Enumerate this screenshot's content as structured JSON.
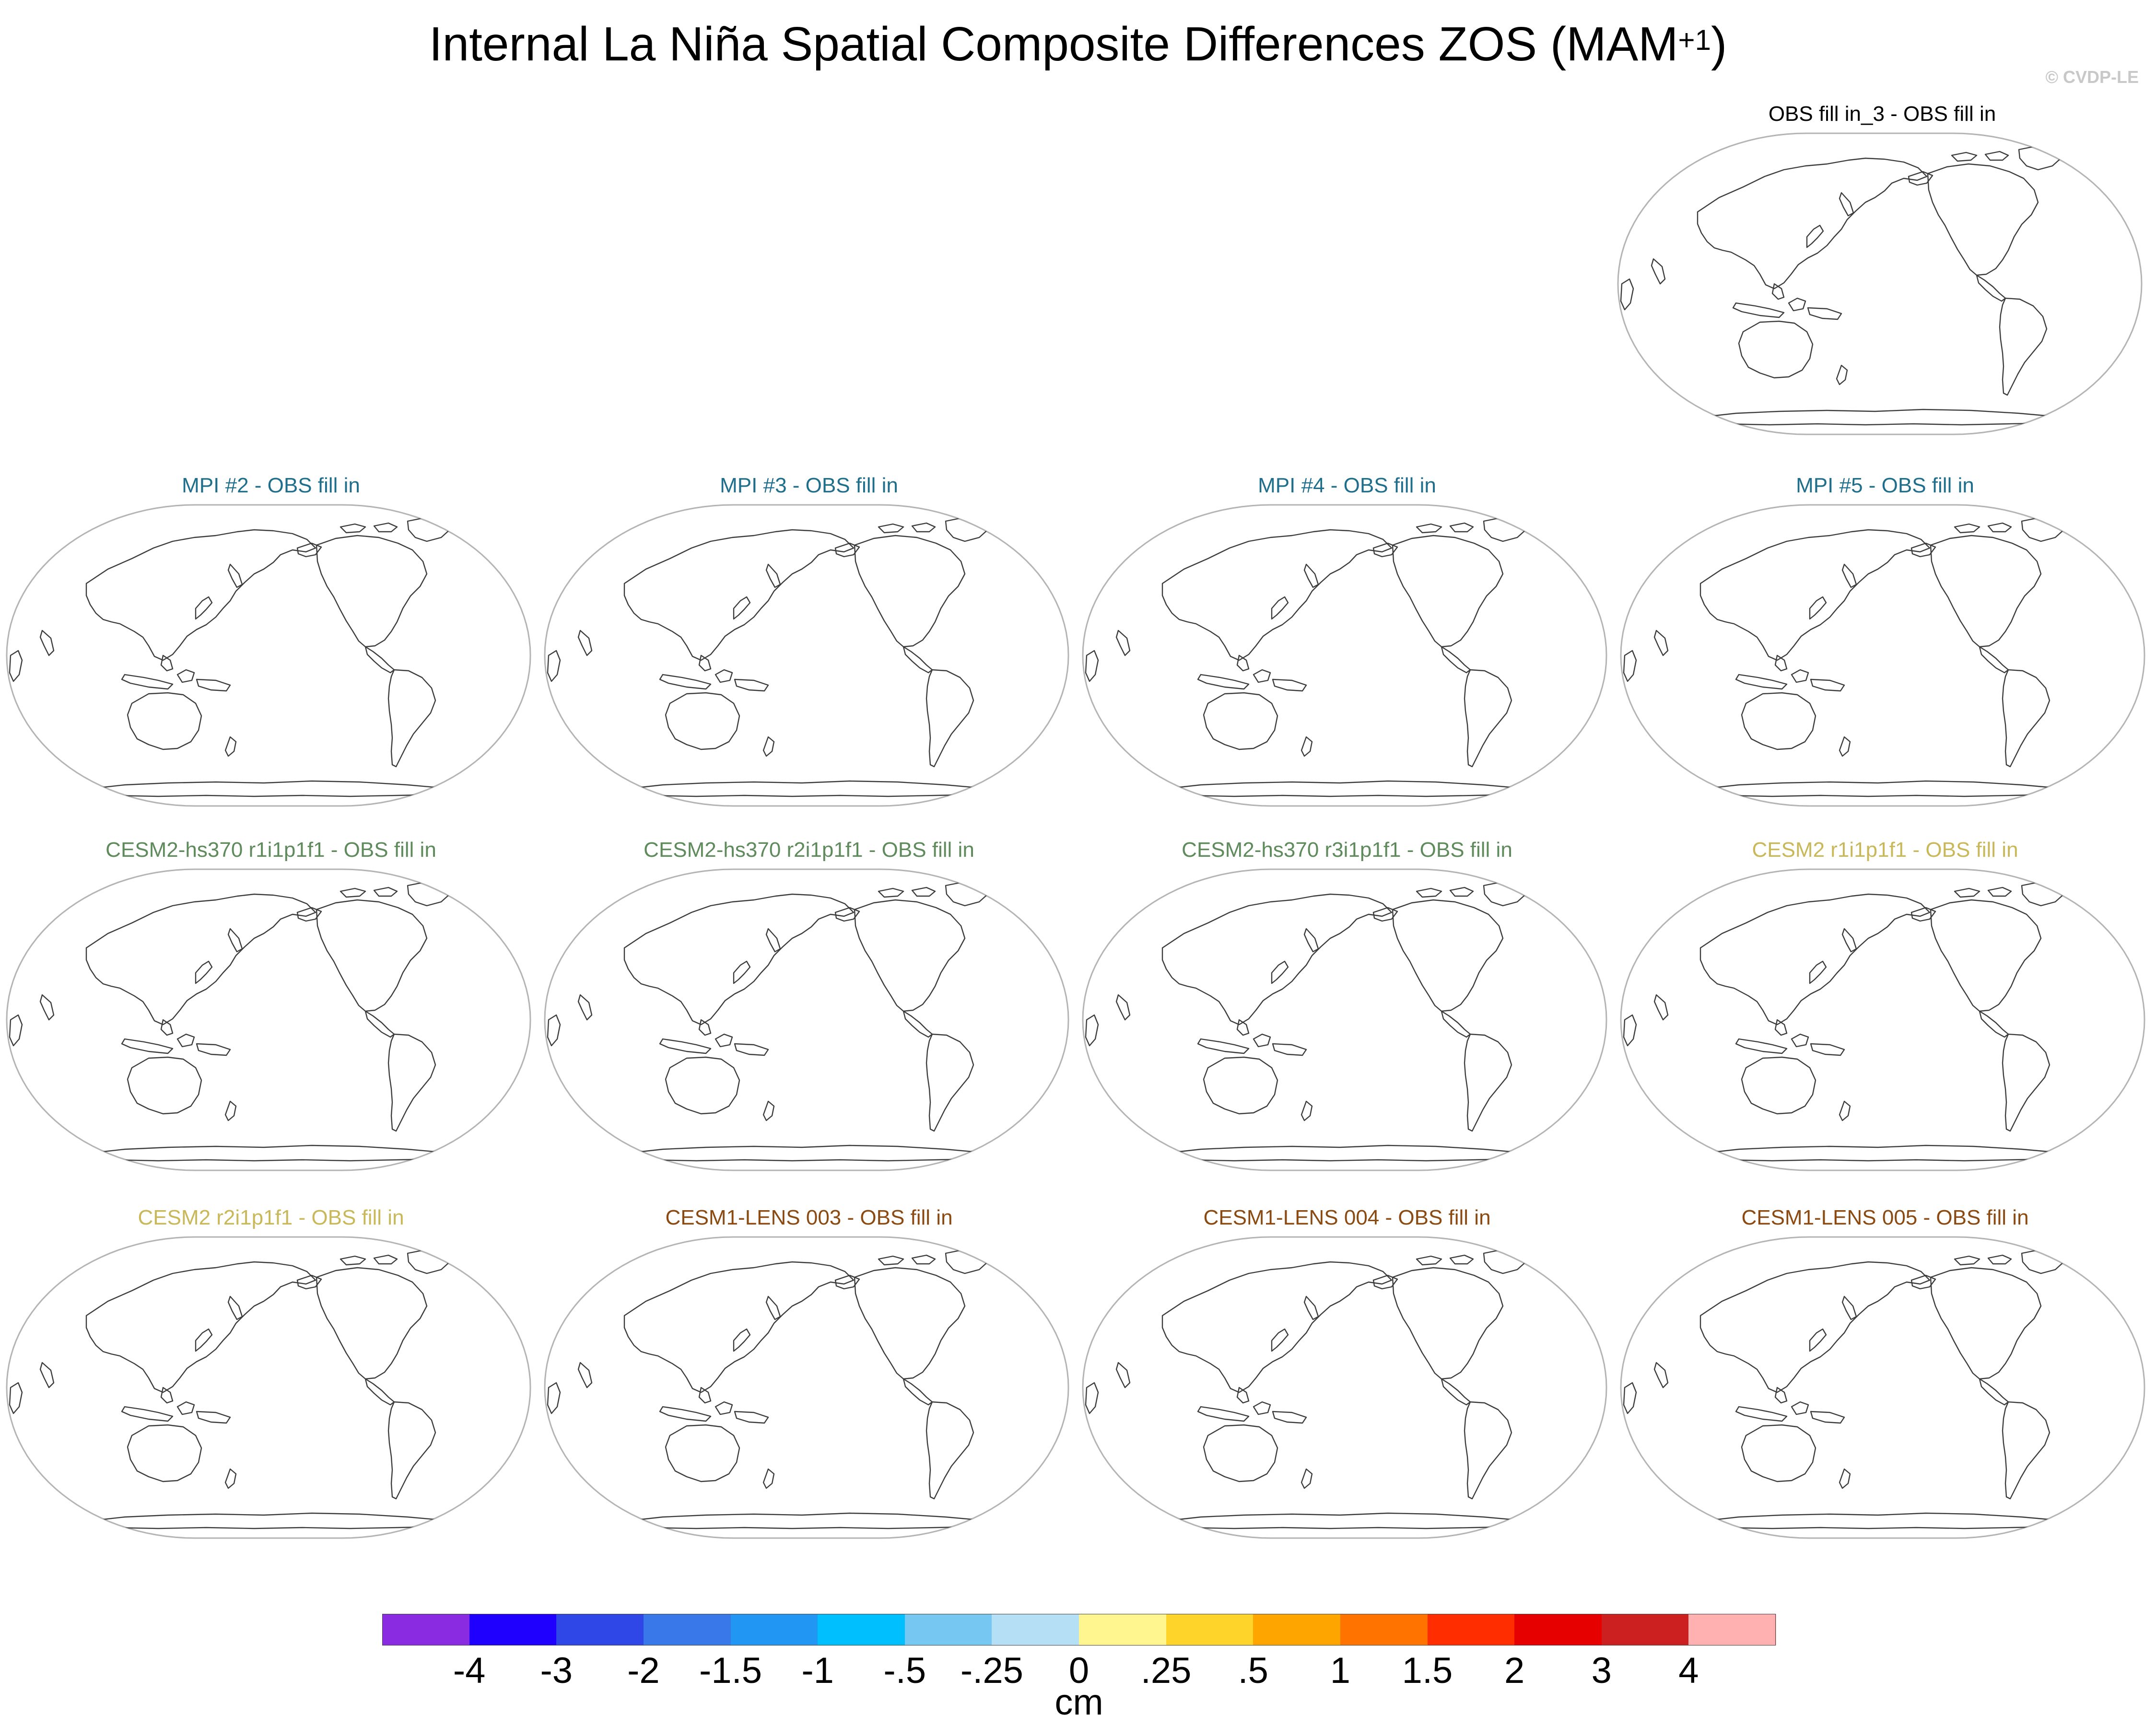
{
  "title": {
    "main": "Internal La Niña Spatial Composite Differences ZOS (MAM",
    "superscript": "+1",
    "close": ")"
  },
  "credit": "© CVDP-LE",
  "panels": [
    {
      "label": "OBS fill in_3 - OBS fill in",
      "color": "#000000"
    },
    {
      "label": "MPI #2 - OBS fill in",
      "color": "#1f6e8c"
    },
    {
      "label": "MPI #3 - OBS fill in",
      "color": "#1f6e8c"
    },
    {
      "label": "MPI #4 - OBS fill in",
      "color": "#1f6e8c"
    },
    {
      "label": "MPI #5 - OBS fill in",
      "color": "#1f6e8c"
    },
    {
      "label": "CESM2-hs370 r1i1p1f1 - OBS fill in",
      "color": "#5e8a5c"
    },
    {
      "label": "CESM2-hs370 r2i1p1f1 - OBS fill in",
      "color": "#5e8a5c"
    },
    {
      "label": "CESM2-hs370 r3i1p1f1 - OBS fill in",
      "color": "#5e8a5c"
    },
    {
      "label": "CESM2 r1i1p1f1 - OBS fill in",
      "color": "#c8b85a"
    },
    {
      "label": "CESM2 r2i1p1f1 - OBS fill in",
      "color": "#c8b85a"
    },
    {
      "label": "CESM1-LENS 003 - OBS fill in",
      "color": "#8a4a12"
    },
    {
      "label": "CESM1-LENS 004 - OBS fill in",
      "color": "#8a4a12"
    },
    {
      "label": "CESM1-LENS 005 - OBS fill in",
      "color": "#8a4a12"
    }
  ],
  "colorbar": {
    "colors": [
      "#8a2be2",
      "#1f00ff",
      "#2e47e6",
      "#3878e8",
      "#2196f3",
      "#00bfff",
      "#76c8f2",
      "#b4dff4",
      "#fff68f",
      "#ffd42a",
      "#ffa500",
      "#ff7400",
      "#ff2d00",
      "#e60000",
      "#cc1f1f",
      "#ffb0b0"
    ],
    "tick_labels": [
      "-4",
      "-3",
      "-2",
      "-1.5",
      "-1",
      "-.5",
      "-.25",
      "0",
      ".25",
      ".5",
      "1",
      "1.5",
      "2",
      "3",
      "4"
    ],
    "units": "cm"
  },
  "chart_data": {
    "type": "heatmap",
    "title": "Internal La Niña Spatial Composite Differences ZOS (MAM+1)",
    "variable": "ZOS",
    "units": "cm",
    "levels": [
      -4,
      -3,
      -2,
      -1.5,
      -1,
      -0.5,
      -0.25,
      0,
      0.25,
      0.5,
      1,
      1.5,
      2,
      3,
      4
    ],
    "panels": [
      "OBS fill in_3 - OBS fill in",
      "MPI #2 - OBS fill in",
      "MPI #3 - OBS fill in",
      "MPI #4 - OBS fill in",
      "MPI #5 - OBS fill in",
      "CESM2-hs370 r1i1p1f1 - OBS fill in",
      "CESM2-hs370 r2i1p1f1 - OBS fill in",
      "CESM2-hs370 r3i1p1f1 - OBS fill in",
      "CESM2 r1i1p1f1 - OBS fill in",
      "CESM2 r2i1p1f1 - OBS fill in",
      "CESM1-LENS 003 - OBS fill in",
      "CESM1-LENS 004 - OBS fill in",
      "CESM1-LENS 005 - OBS fill in"
    ],
    "field_values": "no shaded values shown (all panels blank)"
  }
}
